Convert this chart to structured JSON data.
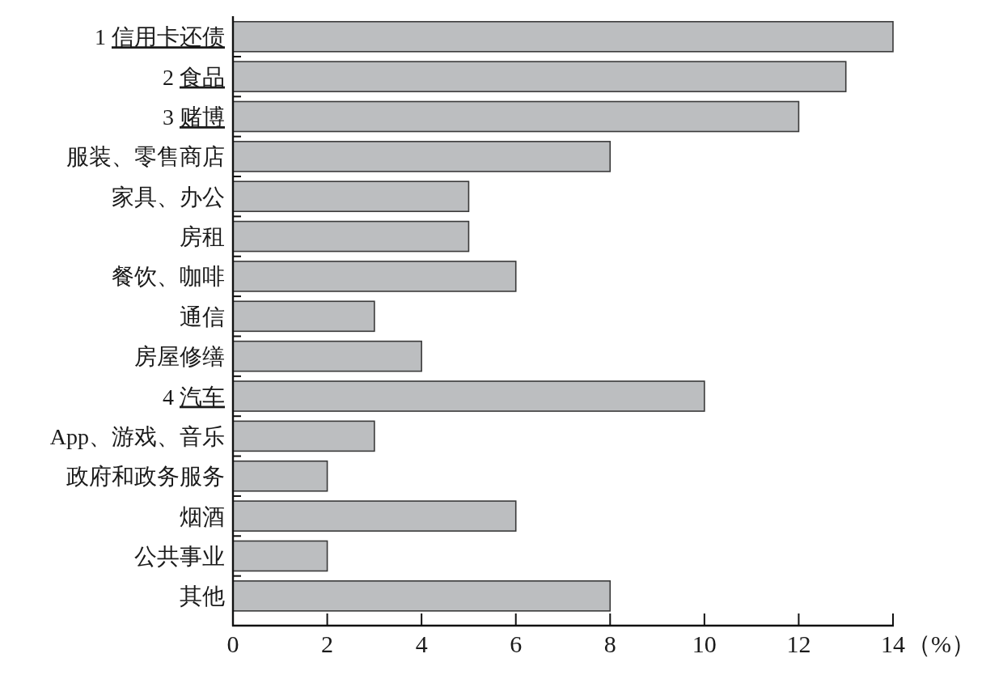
{
  "chart_data": {
    "type": "bar",
    "orientation": "horizontal",
    "categories": [
      "1 信用卡还债",
      "2 食品",
      "3 赌博",
      "服装、零售商店",
      "家具、办公",
      "房租",
      "餐饮、咖啡",
      "通信",
      "房屋修缮",
      "4 汽车",
      "App、游戏、音乐",
      "政府和政务服务",
      "烟酒",
      "公共事业",
      "其他"
    ],
    "values": [
      14,
      13,
      12,
      8,
      5,
      5,
      6,
      3,
      4,
      10,
      3,
      2,
      6,
      2,
      8
    ],
    "color": "#bcbec0",
    "xlim": [
      0,
      14
    ],
    "xticks": [
      0,
      2,
      4,
      6,
      8,
      10,
      12,
      14
    ],
    "xlabel": "（%）"
  }
}
